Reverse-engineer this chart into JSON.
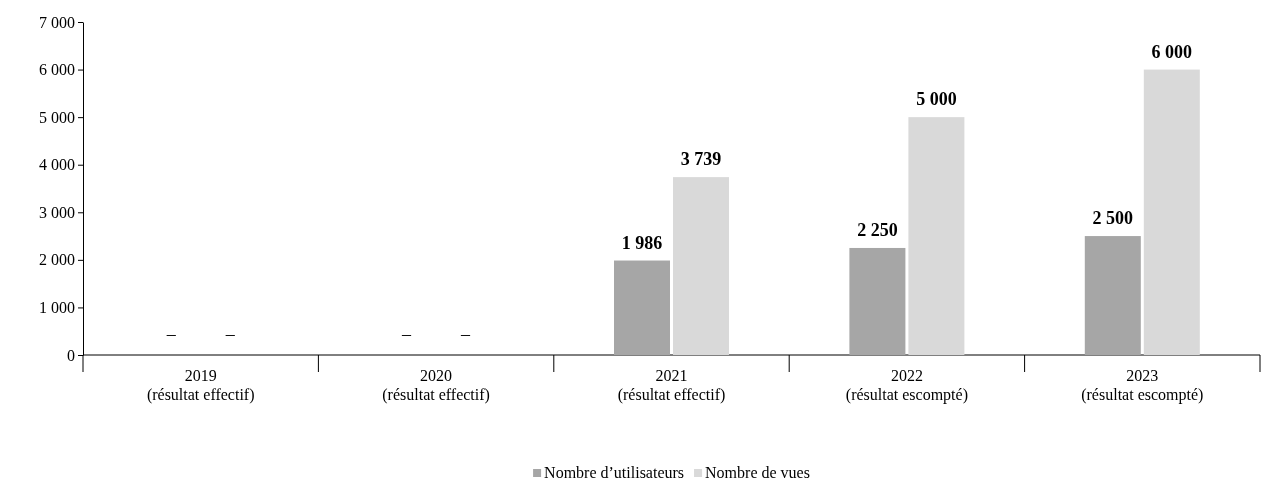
{
  "chart_data": {
    "type": "bar",
    "categories": [
      "2019\n(résultat effectif)",
      "2020\n(résultat effectif)",
      "2021\n(résultat effectif)",
      "2022\n(résultat escompté)",
      "2023\n(résultat escompté)"
    ],
    "series": [
      {
        "name": "Nombre d’utilisateurs",
        "color": "#a6a6a6",
        "values": [
          null,
          null,
          1986,
          2250,
          2500
        ],
        "value_labels": [
          "–",
          "–",
          "1 986",
          "2 250",
          "2 500"
        ]
      },
      {
        "name": "Nombre de vues",
        "color": "#d9d9d9",
        "values": [
          null,
          null,
          3739,
          5000,
          6000
        ],
        "value_labels": [
          "–",
          "–",
          "3 739",
          "5 000",
          "6 000"
        ]
      }
    ],
    "ylim": [
      0,
      7000
    ],
    "yticks": [
      {
        "value": 0,
        "label": "0"
      },
      {
        "value": 1000,
        "label": "1 000"
      },
      {
        "value": 2000,
        "label": "2 000"
      },
      {
        "value": 3000,
        "label": "3 000"
      },
      {
        "value": 4000,
        "label": "4 000"
      },
      {
        "value": 5000,
        "label": "5 000"
      },
      {
        "value": 6000,
        "label": "6 000"
      },
      {
        "value": 7000,
        "label": "7 000"
      }
    ],
    "legend": "bottom"
  }
}
